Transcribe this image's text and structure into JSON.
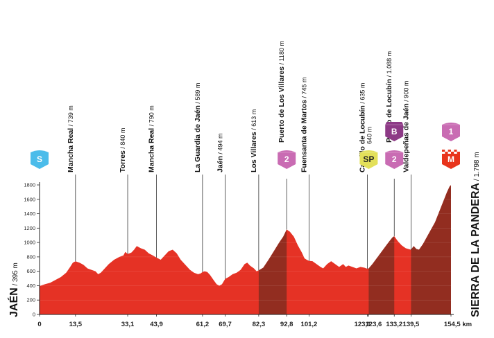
{
  "chart_data": {
    "type": "area",
    "title": "",
    "xlabel": "",
    "ylabel": "",
    "x_unit": "km",
    "xlim": [
      0,
      154.5
    ],
    "ylim": [
      0,
      1800
    ],
    "y_ticks": [
      0,
      200,
      400,
      600,
      800,
      1000,
      1200,
      1400,
      1600,
      1800
    ],
    "x_ticks": [
      "0",
      "13,5",
      "33,1",
      "43,9",
      "61,2",
      "69,7",
      "82,3",
      "92,8",
      "101,2",
      "123,1",
      "123,6",
      "133,2",
      "139,5",
      "154,5 km"
    ],
    "start": {
      "name": "JAÉN",
      "alt": "395 m"
    },
    "finish": {
      "name": "SIERRA DE LA PANDERA",
      "alt": "1.798 m"
    },
    "profile": [
      [
        0,
        395
      ],
      [
        2,
        420
      ],
      [
        4,
        440
      ],
      [
        6,
        480
      ],
      [
        8,
        520
      ],
      [
        10,
        580
      ],
      [
        11.5,
        660
      ],
      [
        12.5,
        720
      ],
      [
        13.5,
        739
      ],
      [
        15,
        720
      ],
      [
        16.5,
        690
      ],
      [
        18,
        640
      ],
      [
        19.5,
        620
      ],
      [
        21,
        600
      ],
      [
        22,
        560
      ],
      [
        23,
        580
      ],
      [
        24.5,
        640
      ],
      [
        26,
        700
      ],
      [
        28,
        760
      ],
      [
        30,
        800
      ],
      [
        31.5,
        820
      ],
      [
        32.2,
        870
      ],
      [
        33.1,
        840
      ],
      [
        34.5,
        860
      ],
      [
        35.5,
        900
      ],
      [
        36.5,
        950
      ],
      [
        38,
        920
      ],
      [
        39.5,
        900
      ],
      [
        41,
        850
      ],
      [
        42.5,
        820
      ],
      [
        43.9,
        790
      ],
      [
        45.5,
        760
      ],
      [
        47,
        820
      ],
      [
        48.5,
        880
      ],
      [
        50,
        900
      ],
      [
        51.5,
        850
      ],
      [
        53,
        760
      ],
      [
        55,
        680
      ],
      [
        56.5,
        620
      ],
      [
        58,
        580
      ],
      [
        59.5,
        560
      ],
      [
        60.5,
        570
      ],
      [
        61.2,
        589
      ],
      [
        62,
        600
      ],
      [
        63,
        590
      ],
      [
        64,
        550
      ],
      [
        65.5,
        470
      ],
      [
        66.5,
        420
      ],
      [
        67.5,
        400
      ],
      [
        68.5,
        420
      ],
      [
        69.7,
        494
      ],
      [
        71,
        520
      ],
      [
        72.5,
        560
      ],
      [
        74,
        580
      ],
      [
        75.5,
        620
      ],
      [
        77,
        700
      ],
      [
        78,
        720
      ],
      [
        79,
        680
      ],
      [
        80.5,
        640
      ],
      [
        81.5,
        600
      ],
      [
        82.3,
        613
      ],
      [
        84,
        650
      ],
      [
        86,
        760
      ],
      [
        88,
        880
      ],
      [
        90,
        1000
      ],
      [
        91.5,
        1080
      ],
      [
        92.8,
        1180
      ],
      [
        94,
        1150
      ],
      [
        95.5,
        1080
      ],
      [
        97,
        960
      ],
      [
        98.5,
        860
      ],
      [
        99.5,
        780
      ],
      [
        100.3,
        760
      ],
      [
        101.2,
        745
      ],
      [
        102.5,
        740
      ],
      [
        104,
        700
      ],
      [
        105.5,
        660
      ],
      [
        106.5,
        640
      ],
      [
        108,
        700
      ],
      [
        109.5,
        740
      ],
      [
        111,
        700
      ],
      [
        112.5,
        660
      ],
      [
        114,
        700
      ],
      [
        115,
        660
      ],
      [
        116,
        680
      ],
      [
        117.5,
        660
      ],
      [
        119,
        640
      ],
      [
        120.5,
        660
      ],
      [
        122,
        650
      ],
      [
        123.1,
        635
      ],
      [
        123.6,
        640
      ],
      [
        125,
        700
      ],
      [
        127,
        800
      ],
      [
        129,
        900
      ],
      [
        131,
        1000
      ],
      [
        132.5,
        1070
      ],
      [
        133.2,
        1088
      ],
      [
        134.5,
        1020
      ],
      [
        136,
        960
      ],
      [
        137.5,
        920
      ],
      [
        138.5,
        910
      ],
      [
        139.5,
        900
      ],
      [
        140.5,
        950
      ],
      [
        141.5,
        910
      ],
      [
        142.5,
        900
      ],
      [
        144,
        980
      ],
      [
        145.5,
        1080
      ],
      [
        147,
        1180
      ],
      [
        148.5,
        1280
      ],
      [
        150,
        1420
      ],
      [
        151.5,
        1560
      ],
      [
        153,
        1700
      ],
      [
        154,
        1780
      ],
      [
        154.5,
        1798
      ]
    ],
    "climbs": [
      {
        "from": 82.3,
        "to": 92.8,
        "category": "2"
      },
      {
        "from": 123.6,
        "to": 133.2,
        "category": "2"
      },
      {
        "from": 139.5,
        "to": 154.5,
        "category": "1"
      }
    ],
    "points": [
      {
        "km": 13.5,
        "name": "Mancha Real",
        "alt": "739 m"
      },
      {
        "km": 33.1,
        "name": "Torres",
        "alt": "840 m"
      },
      {
        "km": 43.9,
        "name": "Mancha Real",
        "alt": "790 m"
      },
      {
        "km": 61.2,
        "name": "La Guardia de Jaén",
        "alt": "589 m"
      },
      {
        "km": 69.7,
        "name": "Jaén",
        "alt": "494 m"
      },
      {
        "km": 82.3,
        "name": "Los Villares",
        "alt": "613 m"
      },
      {
        "km": 92.8,
        "name": "Puerto de Los Villares",
        "alt": "1180 m"
      },
      {
        "km": 101.2,
        "name": "Fuensanta de Martos",
        "alt": "745 m"
      },
      {
        "km": 123.1,
        "name": "Castillo de Locubín",
        "alt": "635 m"
      },
      {
        "km": 133.2,
        "name": "Puerto de Locubín",
        "alt": "1.088 m"
      },
      {
        "km": 139.5,
        "name": "Valdepeñas de Jaén",
        "alt": "900 m"
      }
    ],
    "markers": [
      {
        "km": 0,
        "text": "S",
        "kind": "start",
        "color": "#4bbcea"
      },
      {
        "km": 92.8,
        "text": "2",
        "kind": "climb",
        "color": "#c96cb3"
      },
      {
        "km": 123.6,
        "text": "SP",
        "kind": "sprint",
        "color": "#e3e05a",
        "alt": "640 m"
      },
      {
        "km": 133.2,
        "text": "2",
        "kind": "climb",
        "color": "#c96cb3"
      },
      {
        "km": 133.2,
        "text": "B",
        "kind": "bonus",
        "color": "#8d3a86"
      },
      {
        "km": 154.5,
        "text": "1",
        "kind": "climb",
        "color": "#c96cb3"
      },
      {
        "km": 154.5,
        "text": "M",
        "kind": "finish",
        "color": "#e8341c"
      }
    ],
    "colors": {
      "profile": "#e53225",
      "climb": "#922d20",
      "axis": "#222222"
    }
  }
}
